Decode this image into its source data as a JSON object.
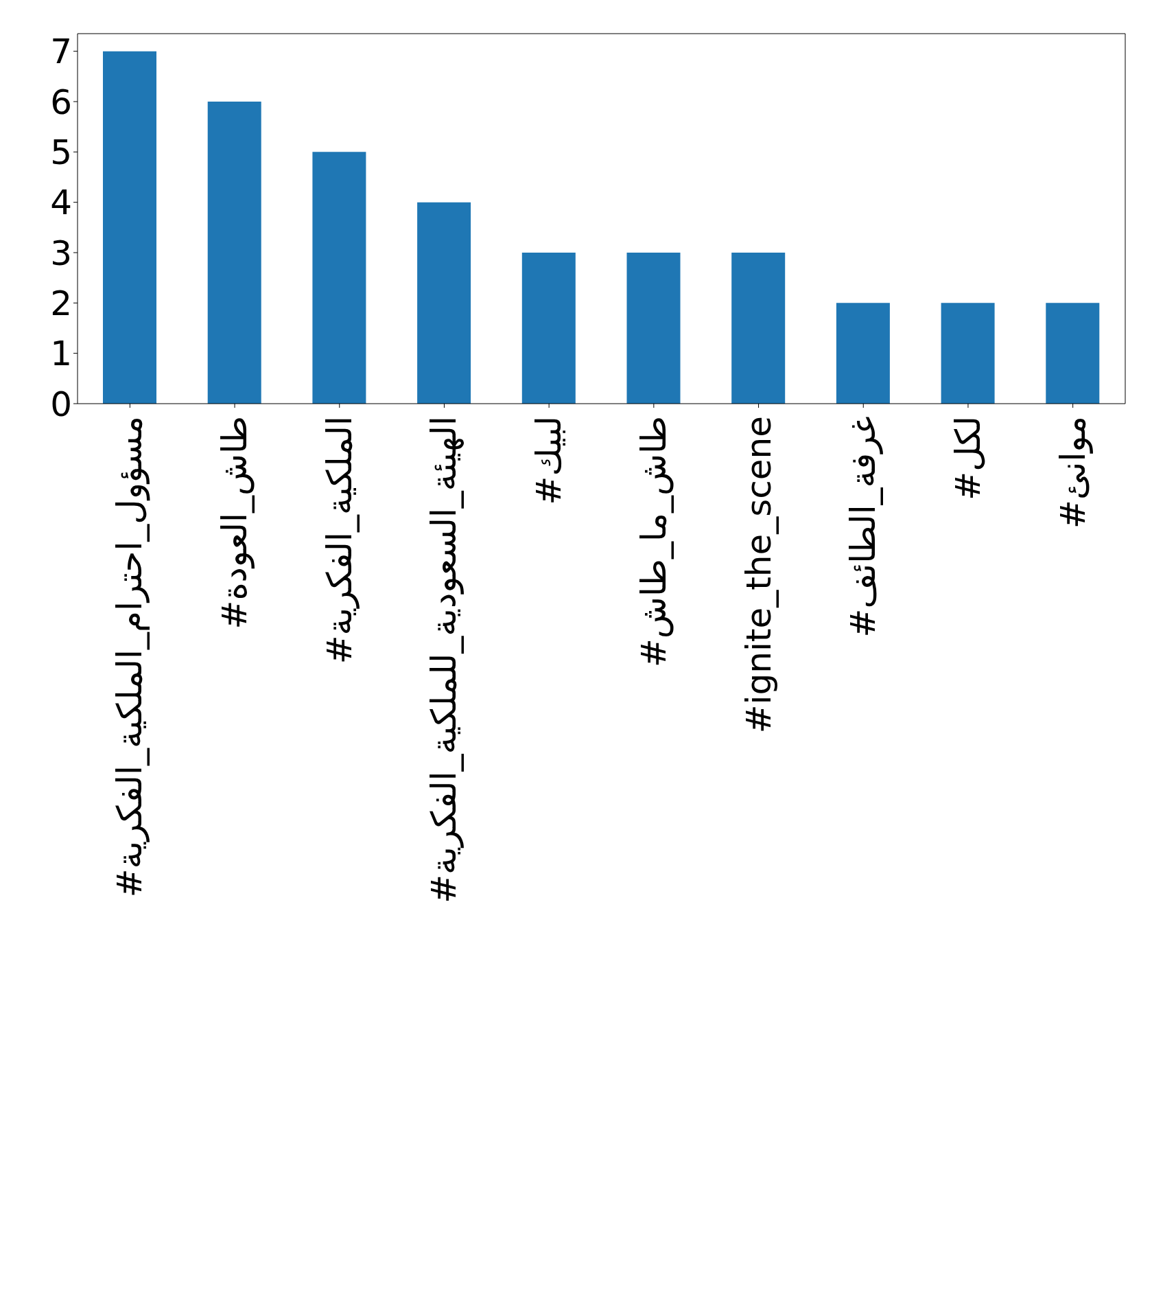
{
  "chart_data": {
    "type": "bar",
    "categories": [
      "#مسؤول_احترام_الملكية_الفكرية",
      "#طاش_العودة",
      "#الملكية_الفكرية",
      "#الهيئة_السعودية_للملكية_الفكرية",
      "#لبيك",
      "#طاش_ما_طاش",
      "#ignite_the_scene",
      "#غرفة_الطائف",
      "#لكل",
      "#موانئ"
    ],
    "values": [
      7,
      6,
      5,
      4,
      3,
      3,
      3,
      2,
      2,
      2
    ],
    "color": "#1f77b4",
    "ylim": [
      0,
      7.35
    ],
    "yticks": [
      0,
      1,
      2,
      3,
      4,
      5,
      6,
      7
    ],
    "grid": false,
    "legend": false
  }
}
